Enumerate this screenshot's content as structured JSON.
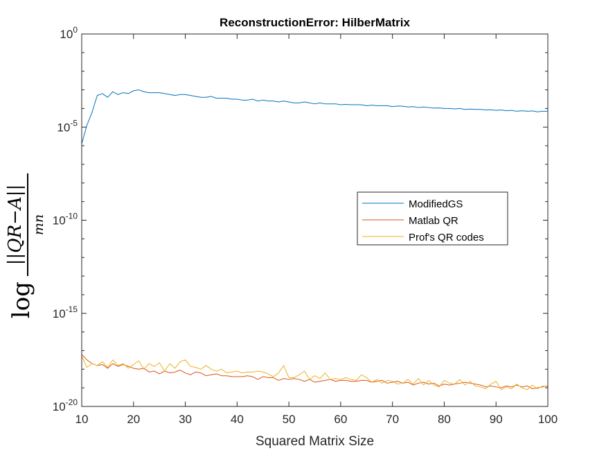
{
  "chart_data": {
    "type": "line",
    "title": "ReconstructionError: HilberMatrix",
    "xlabel": "Squared Matrix Size",
    "ylabel": {
      "prefix": "log",
      "numerator": "||QR−A||",
      "denominator": "mn"
    },
    "xlim": [
      10,
      100
    ],
    "ylim_exponent": [
      -20,
      0
    ],
    "y_scale": "log",
    "x_ticks": [
      10,
      20,
      30,
      40,
      50,
      60,
      70,
      80,
      90,
      100
    ],
    "y_ticks": [
      {
        "base": "10",
        "exp": "0",
        "value": 0
      },
      {
        "base": "10",
        "exp": "-5",
        "value": -5
      },
      {
        "base": "10",
        "exp": "-10",
        "value": -10
      },
      {
        "base": "10",
        "exp": "-15",
        "value": -15
      },
      {
        "base": "10",
        "exp": "-20",
        "value": -20
      }
    ],
    "legend_position": "center-right",
    "series": [
      {
        "name": "ModifiedGS",
        "color": "#0072BD",
        "x_start": 10,
        "log10_y": [
          -5.9,
          -4.9,
          -4.2,
          -3.3,
          -3.2,
          -3.4,
          -3.1,
          -3.25,
          -3.15,
          -3.2,
          -3.05,
          -3.0,
          -3.1,
          -3.15,
          -3.15,
          -3.15,
          -3.2,
          -3.25,
          -3.3,
          -3.25,
          -3.25,
          -3.3,
          -3.35,
          -3.4,
          -3.4,
          -3.35,
          -3.45,
          -3.45,
          -3.45,
          -3.5,
          -3.5,
          -3.55,
          -3.55,
          -3.5,
          -3.6,
          -3.55,
          -3.6,
          -3.6,
          -3.65,
          -3.6,
          -3.65,
          -3.7,
          -3.7,
          -3.65,
          -3.7,
          -3.75,
          -3.7,
          -3.75,
          -3.75,
          -3.75,
          -3.8,
          -3.78,
          -3.8,
          -3.8,
          -3.8,
          -3.85,
          -3.82,
          -3.85,
          -3.85,
          -3.85,
          -3.9,
          -3.87,
          -3.88,
          -3.92,
          -3.9,
          -3.95,
          -3.92,
          -3.95,
          -3.98,
          -3.97,
          -4.0,
          -4.0,
          -4.02,
          -4.0,
          -4.05,
          -4.03,
          -4.05,
          -4.05,
          -4.08,
          -4.07,
          -4.1,
          -4.08,
          -4.12,
          -4.1,
          -4.15,
          -4.12,
          -4.15,
          -4.13,
          -4.18,
          -4.15,
          -4.15
        ]
      },
      {
        "name": "Matlab QR",
        "color": "#D95319",
        "x_start": 10,
        "log10_y": [
          -17.2,
          -17.5,
          -17.7,
          -17.8,
          -17.75,
          -17.95,
          -17.7,
          -17.85,
          -17.75,
          -17.85,
          -17.95,
          -18.0,
          -17.95,
          -18.15,
          -18.1,
          -18.25,
          -18.1,
          -18.2,
          -18.15,
          -18.05,
          -18.2,
          -18.3,
          -18.15,
          -18.2,
          -18.35,
          -18.3,
          -18.25,
          -18.35,
          -18.35,
          -18.4,
          -18.4,
          -18.4,
          -18.35,
          -18.4,
          -18.55,
          -18.4,
          -18.45,
          -18.45,
          -18.6,
          -18.5,
          -18.55,
          -18.5,
          -18.55,
          -18.65,
          -18.55,
          -18.7,
          -18.65,
          -18.6,
          -18.55,
          -18.65,
          -18.6,
          -18.6,
          -18.65,
          -18.65,
          -18.6,
          -18.6,
          -18.7,
          -18.65,
          -18.6,
          -18.75,
          -18.7,
          -18.65,
          -18.75,
          -18.7,
          -18.85,
          -18.75,
          -18.7,
          -18.8,
          -18.75,
          -18.9,
          -18.8,
          -18.85,
          -18.8,
          -18.75,
          -18.7,
          -18.75,
          -18.8,
          -18.85,
          -18.95,
          -18.9,
          -18.95,
          -19.0,
          -18.9,
          -18.95,
          -18.85,
          -18.95,
          -18.9,
          -19.05,
          -19.0,
          -18.95,
          -18.9
        ]
      },
      {
        "name": "Prof's QR codes",
        "color": "#EDB120",
        "x_start": 10,
        "log10_y": [
          -17.3,
          -17.9,
          -17.7,
          -17.8,
          -17.6,
          -17.9,
          -17.5,
          -17.8,
          -17.7,
          -17.95,
          -17.75,
          -17.55,
          -18.0,
          -17.7,
          -17.85,
          -17.65,
          -18.1,
          -17.7,
          -17.95,
          -17.6,
          -17.5,
          -17.85,
          -17.9,
          -18.0,
          -17.8,
          -18.0,
          -18.1,
          -18.0,
          -18.2,
          -18.15,
          -18.1,
          -18.2,
          -18.15,
          -18.15,
          -18.1,
          -18.15,
          -18.25,
          -18.4,
          -18.2,
          -17.8,
          -18.45,
          -18.45,
          -18.3,
          -18.1,
          -18.55,
          -18.35,
          -18.5,
          -18.2,
          -18.55,
          -18.5,
          -18.55,
          -18.45,
          -18.55,
          -18.6,
          -18.3,
          -18.45,
          -18.7,
          -18.55,
          -18.75,
          -18.6,
          -18.65,
          -18.8,
          -18.75,
          -18.55,
          -18.8,
          -18.5,
          -18.85,
          -18.6,
          -18.85,
          -18.95,
          -18.6,
          -18.75,
          -18.8,
          -18.55,
          -18.85,
          -18.65,
          -18.9,
          -18.95,
          -19.05,
          -18.8,
          -18.65,
          -19.1,
          -18.95,
          -19.05,
          -18.8,
          -19.0,
          -19.1,
          -18.85,
          -19.05,
          -18.9,
          -18.95
        ]
      }
    ]
  }
}
